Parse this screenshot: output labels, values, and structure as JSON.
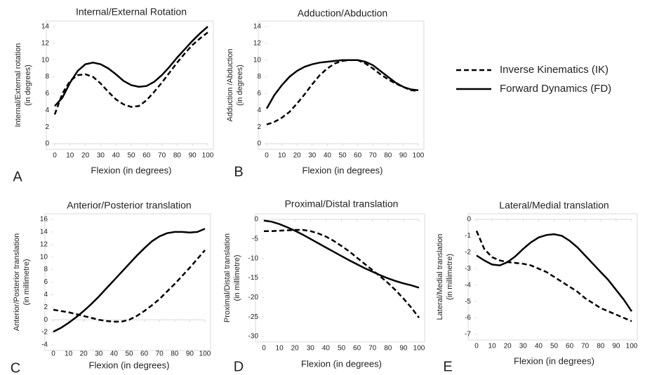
{
  "chart_data": [
    {
      "type": "line",
      "label": "A",
      "title": "Internal/External Rotation",
      "xlabel": "Flexion (in degrees)",
      "ylabel": [
        "Internal/External rotation",
        "(in degrees)"
      ],
      "x": [
        0,
        5,
        10,
        15,
        20,
        25,
        30,
        35,
        40,
        45,
        50,
        55,
        60,
        65,
        70,
        75,
        80,
        85,
        90,
        95,
        100
      ],
      "xlim": [
        0,
        100
      ],
      "xticks": [
        0,
        10,
        20,
        30,
        40,
        50,
        60,
        70,
        80,
        90,
        100
      ],
      "ylim": [
        0,
        14
      ],
      "yticks": [
        0,
        2,
        4,
        6,
        8,
        10,
        12,
        14
      ],
      "series": [
        {
          "style": "dashed",
          "values": [
            3.5,
            6,
            7.5,
            8.2,
            8.3,
            8,
            7.2,
            6.2,
            5.3,
            4.7,
            4.4,
            4.5,
            5.2,
            6.2,
            7.3,
            8.5,
            9.7,
            10.8,
            11.8,
            12.6,
            13.3
          ]
        },
        {
          "style": "solid",
          "values": [
            4.5,
            5.5,
            7.3,
            8.7,
            9.5,
            9.7,
            9.5,
            9,
            8.3,
            7.5,
            7,
            6.8,
            6.9,
            7.4,
            8.2,
            9.2,
            10.3,
            11.3,
            12.3,
            13.2,
            14
          ]
        }
      ]
    },
    {
      "type": "line",
      "label": "B",
      "title": "Adduction/Abduction",
      "xlabel": "Flexion (in degrees)",
      "ylabel": [
        "Adduction /Abduction",
        "(in degrees)"
      ],
      "x": [
        0,
        5,
        10,
        15,
        20,
        25,
        30,
        35,
        40,
        45,
        50,
        55,
        60,
        65,
        70,
        75,
        80,
        85,
        90,
        95,
        100
      ],
      "xlim": [
        0,
        100
      ],
      "xticks": [
        0,
        10,
        20,
        30,
        40,
        50,
        60,
        70,
        80,
        90,
        100
      ],
      "ylim": [
        0,
        14
      ],
      "yticks": [
        0,
        2,
        4,
        6,
        8,
        10,
        12,
        14
      ],
      "series": [
        {
          "style": "dashed",
          "values": [
            2.3,
            2.6,
            3.1,
            3.8,
            4.8,
            5.9,
            7.1,
            8.2,
            9,
            9.6,
            9.9,
            10,
            10,
            9.6,
            9,
            8.3,
            7.7,
            7.2,
            6.8,
            6.4,
            6.3
          ]
        },
        {
          "style": "solid",
          "values": [
            4.2,
            5.8,
            7,
            8,
            8.7,
            9.2,
            9.5,
            9.7,
            9.8,
            9.9,
            10,
            10,
            10,
            9.8,
            9.4,
            8.7,
            8,
            7.3,
            6.8,
            6.5,
            6.4
          ]
        }
      ]
    },
    {
      "type": "line",
      "label": "C",
      "title": "Anterior/Posterior translation",
      "xlabel": "Flexion (in degrees)",
      "ylabel": [
        "Anterior/Posterior translation",
        "(in millimetre)"
      ],
      "x": [
        0,
        5,
        10,
        15,
        20,
        25,
        30,
        35,
        40,
        45,
        50,
        55,
        60,
        65,
        70,
        75,
        80,
        85,
        90,
        95,
        100
      ],
      "xlim": [
        0,
        100
      ],
      "xticks": [
        0,
        10,
        20,
        30,
        40,
        50,
        60,
        70,
        80,
        90,
        100
      ],
      "ylim": [
        -4,
        16
      ],
      "yticks": [
        -4,
        -2,
        0,
        2,
        4,
        6,
        8,
        10,
        12,
        14,
        16
      ],
      "series": [
        {
          "style": "dashed",
          "values": [
            1.6,
            1.4,
            1.2,
            0.9,
            0.6,
            0.3,
            0,
            -0.2,
            -0.3,
            -0.3,
            0,
            0.6,
            1.4,
            2.3,
            3.3,
            4.5,
            5.7,
            7,
            8.3,
            9.7,
            11.1
          ]
        },
        {
          "style": "solid",
          "values": [
            -1.9,
            -1.3,
            -0.5,
            0.4,
            1.4,
            2.5,
            3.7,
            5,
            6.3,
            7.6,
            8.9,
            10.2,
            11.4,
            12.5,
            13.3,
            13.8,
            14,
            14,
            13.9,
            14,
            14.5
          ]
        }
      ]
    },
    {
      "type": "line",
      "label": "D",
      "title": "Proximal/Distal translation",
      "xlabel": "Flexion (in degrees)",
      "ylabel": [
        "Proximal/Distal translation",
        "(in millimetre)"
      ],
      "x": [
        0,
        5,
        10,
        15,
        20,
        25,
        30,
        35,
        40,
        45,
        50,
        55,
        60,
        65,
        70,
        75,
        80,
        85,
        90,
        95,
        100
      ],
      "xlim": [
        0,
        100
      ],
      "xticks": [
        0,
        10,
        20,
        30,
        40,
        50,
        60,
        70,
        80,
        90,
        100
      ],
      "ylim": [
        -30,
        0
      ],
      "yticks": [
        -30,
        -25,
        -20,
        -15,
        -10,
        -5,
        0
      ],
      "series": [
        {
          "style": "dashed",
          "values": [
            -3,
            -3,
            -2.9,
            -2.8,
            -2.7,
            -2.7,
            -3,
            -3.6,
            -4.4,
            -5.5,
            -6.8,
            -8.2,
            -9.8,
            -11.4,
            -13,
            -14.6,
            -16.3,
            -18.2,
            -20.3,
            -22.6,
            -25.2
          ]
        },
        {
          "style": "solid",
          "values": [
            -0.3,
            -0.6,
            -1.2,
            -2,
            -2.9,
            -3.9,
            -5,
            -6.1,
            -7.2,
            -8.3,
            -9.4,
            -10.5,
            -11.5,
            -12.5,
            -13.4,
            -14.3,
            -15.1,
            -15.8,
            -16.4,
            -16.9,
            -17.5
          ]
        }
      ]
    },
    {
      "type": "line",
      "label": "E",
      "title": "Lateral/Medial translation",
      "xlabel": "Flexion (in degrees)",
      "ylabel": [
        "Lateral/Medial translation",
        "(in millimetre)"
      ],
      "x": [
        0,
        5,
        10,
        15,
        20,
        25,
        30,
        35,
        40,
        45,
        50,
        55,
        60,
        65,
        70,
        75,
        80,
        85,
        90,
        95,
        100
      ],
      "xlim": [
        0,
        100
      ],
      "xticks": [
        0,
        10,
        20,
        30,
        40,
        50,
        60,
        70,
        80,
        90,
        100
      ],
      "ylim": [
        -7,
        0
      ],
      "yticks": [
        -7,
        -6,
        -5,
        -4,
        -3,
        -2,
        -1,
        0
      ],
      "series": [
        {
          "style": "dashed",
          "values": [
            -0.7,
            -1.8,
            -2.3,
            -2.5,
            -2.6,
            -2.65,
            -2.7,
            -2.8,
            -3,
            -3.2,
            -3.5,
            -3.8,
            -4.1,
            -4.4,
            -4.8,
            -5.1,
            -5.4,
            -5.6,
            -5.8,
            -6,
            -6.2
          ]
        },
        {
          "style": "solid",
          "values": [
            -2.2,
            -2.5,
            -2.75,
            -2.8,
            -2.6,
            -2.25,
            -1.8,
            -1.4,
            -1.1,
            -0.95,
            -0.9,
            -1,
            -1.3,
            -1.7,
            -2.2,
            -2.7,
            -3.2,
            -3.7,
            -4.3,
            -4.9,
            -5.6
          ]
        }
      ]
    }
  ],
  "legend": [
    {
      "name": "Inverse Kinematics (IK)",
      "style": "dashed"
    },
    {
      "name": "Forward Dynamics (FD)",
      "style": "solid"
    }
  ]
}
